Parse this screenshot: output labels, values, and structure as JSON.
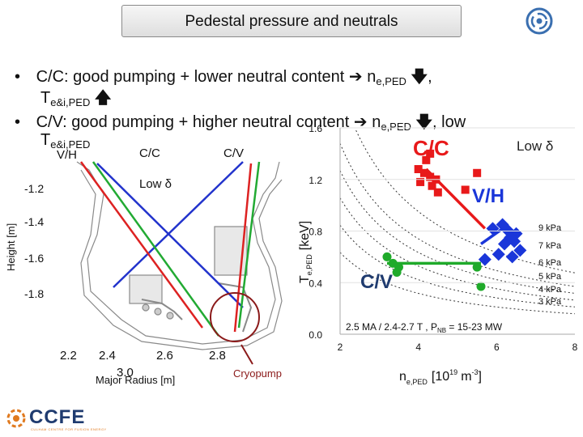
{
  "slide": {
    "title": "Pedestal pressure and neutrals",
    "bullets": [
      {
        "mark": "•",
        "line1": "C/C: good pumping + lower neutral content",
        "arrow": "",
        "n": "n",
        "sub": "e,PED",
        "tail": ",",
        "line2_t": "T",
        "line2_sub": "e&i,PED"
      },
      {
        "mark": "•",
        "line1": "C/V: good pumping + higher neutral content",
        "arrow": "",
        "n": "n",
        "sub": "e,PED",
        "tail": ", low",
        "line2_t": "T",
        "line2_sub": "e&i,PED"
      }
    ],
    "logo": {
      "text": "CCFE",
      "subtext": "CULHAM CENTRE FOR FUSION ENERGY"
    }
  },
  "equilibrium_plot": {
    "legend_vh": "V/H",
    "legend_cc": "C/C",
    "legend_cv": "C/V",
    "low_delta": "Low δ",
    "ylabel": "Height [m]",
    "xlabel": "Major Radius [m]",
    "cryopump_label": "Cryopump",
    "yticks": [
      "-1.2",
      "-1.4",
      "-1.6",
      "-1.8"
    ],
    "xticks": [
      "2.2",
      "2.4",
      "2.6",
      "2.8",
      "3.0"
    ],
    "colors": {
      "vh": "#2233cc",
      "cc": "#dd2222",
      "cv": "#22aa33",
      "circle": "#8b1a1a",
      "wall": "#888888"
    }
  },
  "chart_data": {
    "type": "scatter",
    "title": "Low δ",
    "xlabel": "n",
    "xlabel_sub": "e,PED",
    "xlabel_unit": "[10",
    "xlabel_exp": "19",
    "xlabel_m": "m",
    "xlabel_mexp": "-3",
    "xlabel_close": "]",
    "ylabel": "T",
    "ylabel_sub": "e,PED",
    "ylabel_unit": "[keV]",
    "xlim": [
      2,
      8
    ],
    "ylim": [
      0.0,
      1.6
    ],
    "xticks": [
      2,
      4,
      6,
      8
    ],
    "yticks": [
      "0.0",
      "0.4",
      "0.8",
      "1.2",
      "1.6"
    ],
    "isobar_labels": [
      "9 kPa",
      "7 kPa",
      "6 kPa",
      "5 kPa",
      "4 kPa",
      "3 kPa"
    ],
    "isobar_values": [
      9,
      7,
      6,
      5,
      4,
      3
    ],
    "annotation": "2.5 MA / 2.4-2.7 T , P",
    "annotation_sub": "NB",
    "annotation_tail": " = 15-23 MW",
    "series": [
      {
        "name": "C/C",
        "label": "C/C",
        "color": "#e8191a",
        "marker": "square",
        "x": [
          4.0,
          4.15,
          4.3,
          4.45,
          4.2,
          4.05,
          4.35,
          4.5,
          5.2,
          5.5,
          4.3
        ],
        "y": [
          1.28,
          1.25,
          1.22,
          1.2,
          1.35,
          1.18,
          1.15,
          1.1,
          1.12,
          1.25,
          1.4
        ],
        "fit": {
          "x": [
            4.2,
            5.7
          ],
          "y": [
            1.28,
            0.82
          ]
        }
      },
      {
        "name": "V/H",
        "label": "V/H",
        "color": "#1a36d9",
        "marker": "diamond",
        "x": [
          5.9,
          6.15,
          6.3,
          6.45,
          6.6,
          6.2,
          6.4,
          6.5,
          6.05,
          6.35,
          5.7
        ],
        "y": [
          0.82,
          0.85,
          0.8,
          0.72,
          0.65,
          0.7,
          0.6,
          0.78,
          0.62,
          0.75,
          0.58
        ],
        "fit": {
          "x": [
            5.6,
            6.3
          ],
          "y": [
            0.7,
            0.85
          ]
        }
      },
      {
        "name": "C/V",
        "label": "C/V",
        "color": "#1faa2a",
        "marker": "circle",
        "x": [
          3.2,
          3.35,
          3.5,
          3.45,
          5.5,
          5.6
        ],
        "y": [
          0.6,
          0.55,
          0.52,
          0.48,
          0.52,
          0.37
        ],
        "fit": {
          "x": [
            3.2,
            5.6
          ],
          "y": [
            0.55,
            0.55
          ]
        }
      }
    ]
  }
}
